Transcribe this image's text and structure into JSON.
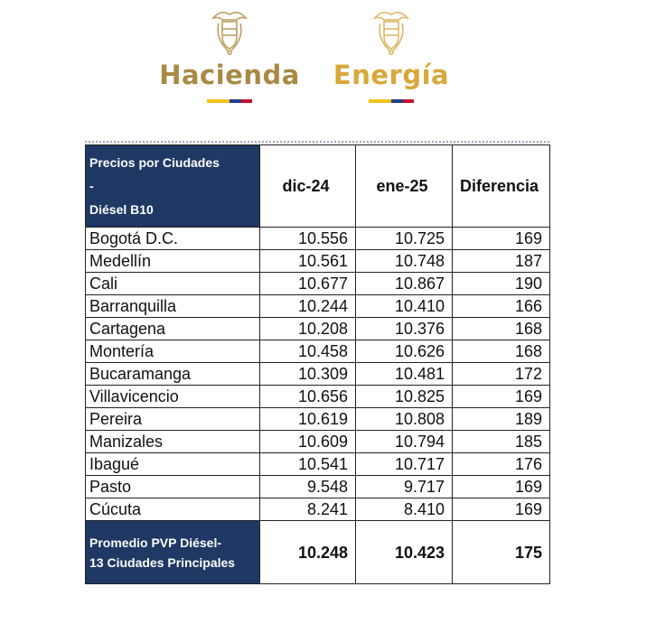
{
  "logos": [
    {
      "name": "Hacienda",
      "color": "#a88a45"
    },
    {
      "name": "Energía",
      "color": "#d9a83a"
    }
  ],
  "flag_colors": [
    "#f2c318",
    "#1f3d8a",
    "#c8102e"
  ],
  "table": {
    "header": {
      "label_line1": "Precios por Ciudades",
      "label_line2": "-",
      "label_line3": "Diésel B10",
      "col1": "dic-24",
      "col2": "ene-25",
      "col3": "Diferencia"
    },
    "rows": [
      {
        "city": "Bogotá D.C.",
        "dic": "10.556",
        "ene": "10.725",
        "diff": "169"
      },
      {
        "city": "Medellín",
        "dic": "10.561",
        "ene": "10.748",
        "diff": "187"
      },
      {
        "city": "Cali",
        "dic": "10.677",
        "ene": "10.867",
        "diff": "190"
      },
      {
        "city": "Barranquilla",
        "dic": "10.244",
        "ene": "10.410",
        "diff": "166"
      },
      {
        "city": "Cartagena",
        "dic": "10.208",
        "ene": "10.376",
        "diff": "168"
      },
      {
        "city": "Montería",
        "dic": "10.458",
        "ene": "10.626",
        "diff": "168"
      },
      {
        "city": "Bucaramanga",
        "dic": "10.309",
        "ene": "10.481",
        "diff": "172"
      },
      {
        "city": "Villavicencio",
        "dic": "10.656",
        "ene": "10.825",
        "diff": "169"
      },
      {
        "city": "Pereira",
        "dic": "10.619",
        "ene": "10.808",
        "diff": "189"
      },
      {
        "city": "Manizales",
        "dic": "10.609",
        "ene": "10.794",
        "diff": "185"
      },
      {
        "city": "Ibagué",
        "dic": "10.541",
        "ene": "10.717",
        "diff": "176"
      },
      {
        "city": "Pasto",
        "dic": "9.548",
        "ene": "9.717",
        "diff": "169"
      },
      {
        "city": "Cúcuta",
        "dic": "8.241",
        "ene": "8.410",
        "diff": "169"
      }
    ],
    "footer": {
      "label_line1": "Promedio PVP Diésel-",
      "label_line2": "13 Ciudades Principales",
      "dic": "10.248",
      "ene": "10.423",
      "diff": "175"
    }
  },
  "header_bg": "#1f3864"
}
